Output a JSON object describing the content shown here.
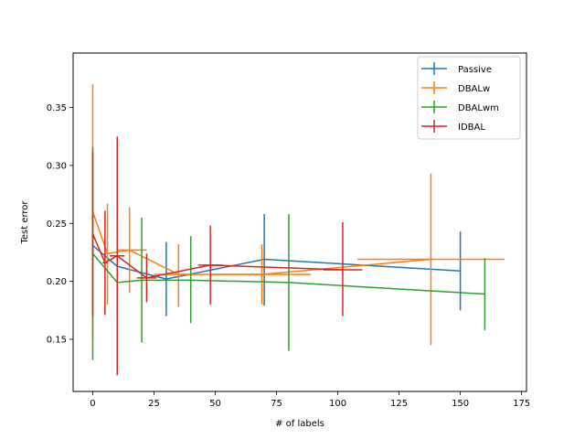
{
  "chart_data": {
    "type": "line",
    "title": "",
    "xlabel": "# of labels",
    "ylabel": "Test error",
    "xlim": [
      -8,
      177
    ],
    "ylim": [
      0.105,
      0.397
    ],
    "xticks": [
      0,
      25,
      50,
      75,
      100,
      125,
      150,
      175
    ],
    "yticks": [
      0.15,
      0.2,
      0.25,
      0.3,
      0.35
    ],
    "xtick_labels": [
      "0",
      "25",
      "50",
      "75",
      "100",
      "125",
      "150",
      "175"
    ],
    "ytick_labels": [
      "0.15",
      "0.20",
      "0.25",
      "0.30",
      "0.35"
    ],
    "legend_position": "top-right",
    "series": [
      {
        "name": "Passive",
        "color": "#1f77b4",
        "points": [
          {
            "x": 0,
            "y": 0.231,
            "yerr": [
              0.2,
              0.262
            ],
            "xerr": [
              0,
              0
            ]
          },
          {
            "x": 10,
            "y": 0.213,
            "yerr": [
              0.163,
              0.243
            ],
            "xerr": [
              10,
              10
            ]
          },
          {
            "x": 30,
            "y": 0.202,
            "yerr": [
              0.17,
              0.234
            ],
            "xerr": [
              30,
              30
            ]
          },
          {
            "x": 70,
            "y": 0.219,
            "yerr": [
              0.179,
              0.258
            ],
            "xerr": [
              70,
              70
            ]
          },
          {
            "x": 150,
            "y": 0.209,
            "yerr": [
              0.175,
              0.243
            ],
            "xerr": [
              150,
              150
            ]
          }
        ]
      },
      {
        "name": "DBALw",
        "color": "#ff7f0e",
        "points": [
          {
            "x": 0,
            "y": 0.26,
            "yerr": [
              0.15,
              0.37
            ],
            "xerr": [
              0,
              0
            ]
          },
          {
            "x": 6,
            "y": 0.224,
            "yerr": [
              0.18,
              0.267
            ],
            "xerr": [
              5,
              7
            ]
          },
          {
            "x": 15,
            "y": 0.227,
            "yerr": [
              0.19,
              0.264
            ],
            "xerr": [
              10,
              22
            ]
          },
          {
            "x": 35,
            "y": 0.206,
            "yerr": [
              0.178,
              0.232
            ],
            "xerr": [
              25,
              42
            ]
          },
          {
            "x": 69,
            "y": 0.206,
            "yerr": [
              0.18,
              0.232
            ],
            "xerr": [
              48,
              89
            ]
          },
          {
            "x": 138,
            "y": 0.219,
            "yerr": [
              0.145,
              0.293
            ],
            "xerr": [
              108,
              168
            ]
          }
        ]
      },
      {
        "name": "DBALwm",
        "color": "#2ca02c",
        "points": [
          {
            "x": 0,
            "y": 0.224,
            "yerr": [
              0.132,
              0.316
            ],
            "xerr": [
              0,
              0
            ]
          },
          {
            "x": 10,
            "y": 0.199,
            "yerr": [
              0.17,
              0.229
            ],
            "xerr": [
              10,
              10
            ]
          },
          {
            "x": 20,
            "y": 0.201,
            "yerr": [
              0.147,
              0.255
            ],
            "xerr": [
              20,
              20
            ]
          },
          {
            "x": 40,
            "y": 0.201,
            "yerr": [
              0.164,
              0.239
            ],
            "xerr": [
              40,
              40
            ]
          },
          {
            "x": 80,
            "y": 0.199,
            "yerr": [
              0.14,
              0.258
            ],
            "xerr": [
              80,
              80
            ]
          },
          {
            "x": 160,
            "y": 0.189,
            "yerr": [
              0.158,
              0.22
            ],
            "xerr": [
              160,
              160
            ]
          }
        ]
      },
      {
        "name": "IDBAL",
        "color": "#d62728",
        "points": [
          {
            "x": 0,
            "y": 0.241,
            "yerr": [
              0.17,
              0.312
            ],
            "xerr": [
              0,
              0
            ]
          },
          {
            "x": 5,
            "y": 0.216,
            "yerr": [
              0.171,
              0.261
            ],
            "xerr": [
              4,
              6
            ]
          },
          {
            "x": 10,
            "y": 0.222,
            "yerr": [
              0.119,
              0.325
            ],
            "xerr": [
              7,
              13
            ]
          },
          {
            "x": 22,
            "y": 0.203,
            "yerr": [
              0.182,
              0.224
            ],
            "xerr": [
              18,
              26
            ]
          },
          {
            "x": 48,
            "y": 0.214,
            "yerr": [
              0.18,
              0.248
            ],
            "xerr": [
              43,
              53
            ]
          },
          {
            "x": 102,
            "y": 0.21,
            "yerr": [
              0.17,
              0.251
            ],
            "xerr": [
              94,
              110
            ]
          }
        ]
      }
    ]
  }
}
